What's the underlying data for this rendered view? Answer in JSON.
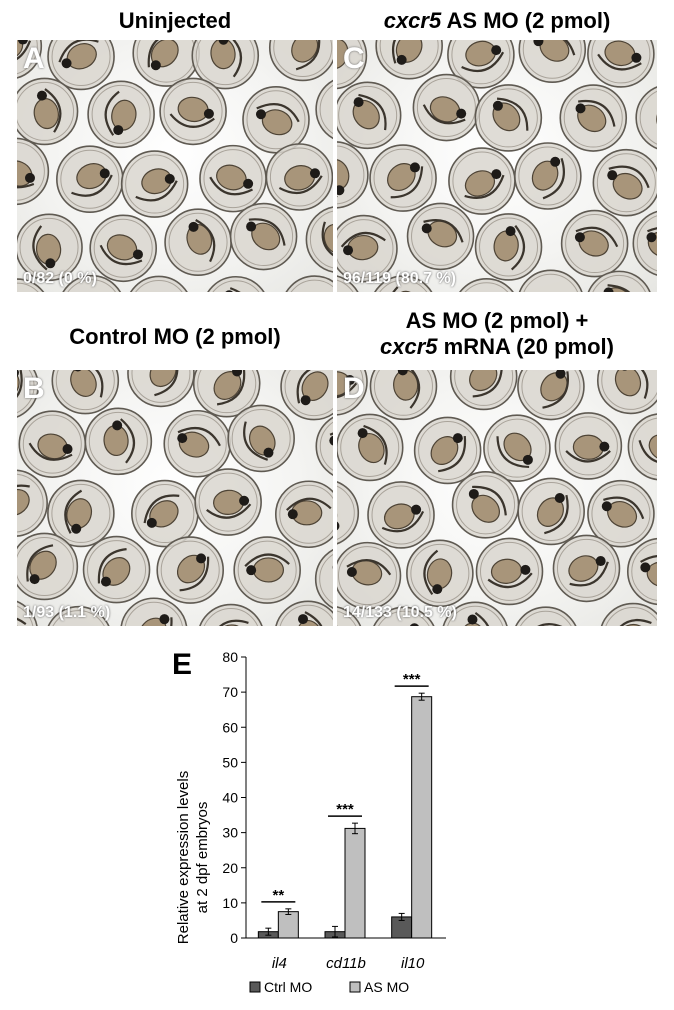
{
  "panels": [
    {
      "letter": "A",
      "title": "Uninjected",
      "count": "0/82 (0 %)"
    },
    {
      "letter": "C",
      "title_italic": "cxcr5",
      "title": " AS MO (2 pmol)",
      "count": "96/119 (80.7 %)"
    },
    {
      "letter": "B",
      "title": "Control MO (2 pmol)",
      "count": "1/93 (1.1 %)"
    },
    {
      "letter": "D",
      "title_line1": "AS MO (2 pmol) +",
      "title_line2_italic": "cxcr5",
      "title_line2": " mRNA (20 pmol)",
      "count": "14/133 (10.5 %)"
    }
  ],
  "chart_data": {
    "panel_letter": "E",
    "type": "bar",
    "categories": [
      "il4",
      "cd11b",
      "il10"
    ],
    "series": [
      {
        "name": "Ctrl MO",
        "values": [
          1.8,
          1.8,
          6.0
        ],
        "errors": [
          1.0,
          1.5,
          1.0
        ],
        "color": "#595959"
      },
      {
        "name": "AS MO",
        "values": [
          7.5,
          31.2,
          68.7
        ],
        "errors": [
          0.8,
          1.5,
          1.0
        ],
        "color": "#bfbfbf"
      }
    ],
    "significance": [
      "**",
      "***",
      "***"
    ],
    "ylabel_line1": "Relative expression levels",
    "ylabel_line2": "at 2 dpf embryos",
    "ylim": [
      0,
      80
    ],
    "yticks": [
      0,
      10,
      20,
      30,
      40,
      50,
      60,
      70,
      80
    ],
    "legend_position": "bottom",
    "grid": false
  },
  "colors": {
    "bar_outline": "#000000",
    "panel_label": "#ffffff"
  }
}
